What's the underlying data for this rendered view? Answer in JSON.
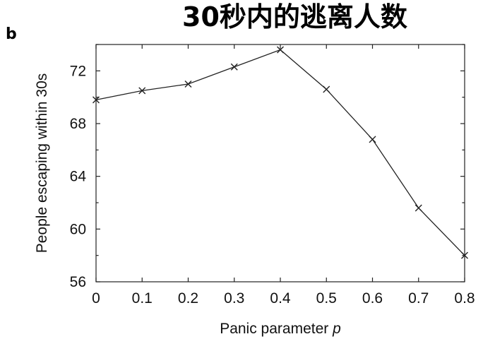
{
  "panel_label": "b",
  "chart_data": {
    "type": "line",
    "title": "30秒内的逃离人数",
    "xlabel_main": "Panic parameter ",
    "xlabel_var": "p",
    "ylabel": "People escaping within 30s",
    "x": [
      0,
      0.1,
      0.2,
      0.3,
      0.4,
      0.5,
      0.6,
      0.7,
      0.8
    ],
    "x_tick_labels": [
      "0",
      "0.1",
      "0.2",
      "0.3",
      "0.4",
      "0.5",
      "0.6",
      "0.7",
      "0.8"
    ],
    "y_ticks": [
      56,
      60,
      64,
      68,
      72
    ],
    "y_tick_labels": [
      "56",
      "60",
      "64",
      "68",
      "72"
    ],
    "xlim": [
      0,
      0.8
    ],
    "ylim": [
      56,
      74
    ],
    "series": [
      {
        "values": [
          69.8,
          70.5,
          71.0,
          72.3,
          73.6,
          70.6,
          66.8,
          61.6,
          58.0
        ],
        "marker": "x",
        "color": "#222222"
      }
    ],
    "grid": false,
    "legend": "none"
  }
}
